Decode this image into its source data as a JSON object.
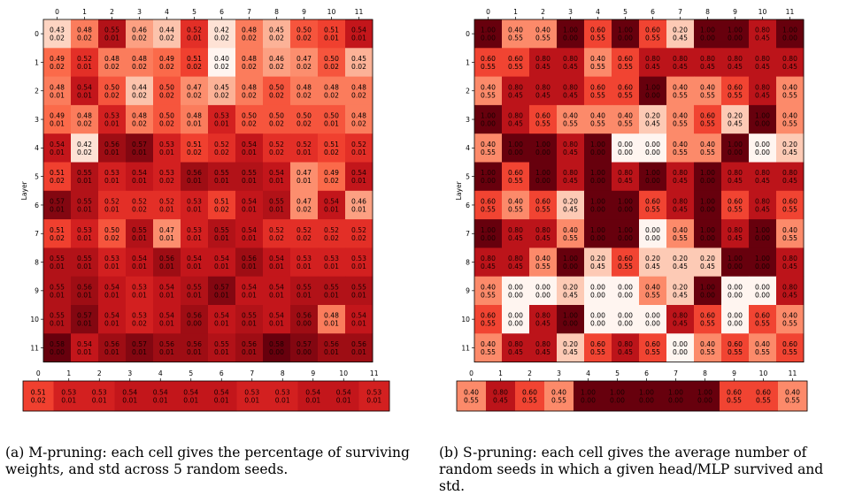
{
  "captions": {
    "a": "(a) M-pruning: each cell gives the percentage of surviving weights, and std across 5 random seeds.",
    "b": "(b) S-pruning: each cell gives the average number of random seeds in which a given head/MLP survived and std."
  },
  "chart_data": [
    {
      "type": "heatmap",
      "title": "",
      "xlabel": "",
      "ylabel": "Layer",
      "x_ticks": [
        "0",
        "1",
        "2",
        "3",
        "4",
        "5",
        "6",
        "7",
        "8",
        "9",
        "10",
        "11"
      ],
      "y_ticks": [
        "0",
        "1",
        "2",
        "3",
        "4",
        "5",
        "6",
        "7",
        "8",
        "9",
        "10",
        "11"
      ],
      "color_range": [
        0.4,
        0.58
      ],
      "colormap": "Reds",
      "grid": false,
      "values": [
        [
          "0.43",
          "0.48",
          "0.55",
          "0.46",
          "0.44",
          "0.52",
          "0.42",
          "0.48",
          "0.45",
          "0.50",
          "0.51",
          "0.54"
        ],
        [
          "0.49",
          "0.52",
          "0.48",
          "0.48",
          "0.49",
          "0.51",
          "0.40",
          "0.48",
          "0.46",
          "0.47",
          "0.50",
          "0.45"
        ],
        [
          "0.48",
          "0.54",
          "0.50",
          "0.44",
          "0.50",
          "0.47",
          "0.45",
          "0.48",
          "0.50",
          "0.48",
          "0.48",
          "0.48"
        ],
        [
          "0.49",
          "0.48",
          "0.53",
          "0.48",
          "0.50",
          "0.48",
          "0.53",
          "0.50",
          "0.50",
          "0.50",
          "0.50",
          "0.48"
        ],
        [
          "0.54",
          "0.42",
          "0.56",
          "0.57",
          "0.53",
          "0.51",
          "0.52",
          "0.54",
          "0.52",
          "0.52",
          "0.51",
          "0.52"
        ],
        [
          "0.51",
          "0.55",
          "0.53",
          "0.54",
          "0.53",
          "0.56",
          "0.55",
          "0.55",
          "0.54",
          "0.47",
          "0.49",
          "0.54"
        ],
        [
          "0.57",
          "0.55",
          "0.52",
          "0.52",
          "0.52",
          "0.53",
          "0.51",
          "0.54",
          "0.55",
          "0.47",
          "0.54",
          "0.46"
        ],
        [
          "0.51",
          "0.53",
          "0.50",
          "0.55",
          "0.47",
          "0.53",
          "0.55",
          "0.54",
          "0.52",
          "0.52",
          "0.52",
          "0.52"
        ],
        [
          "0.55",
          "0.55",
          "0.53",
          "0.54",
          "0.56",
          "0.54",
          "0.54",
          "0.56",
          "0.54",
          "0.53",
          "0.53",
          "0.53"
        ],
        [
          "0.55",
          "0.56",
          "0.54",
          "0.53",
          "0.54",
          "0.55",
          "0.57",
          "0.54",
          "0.54",
          "0.55",
          "0.55",
          "0.55"
        ],
        [
          "0.55",
          "0.57",
          "0.54",
          "0.53",
          "0.54",
          "0.56",
          "0.54",
          "0.55",
          "0.54",
          "0.56",
          "0.48",
          "0.54"
        ],
        [
          "0.58",
          "0.54",
          "0.56",
          "0.57",
          "0.56",
          "0.56",
          "0.55",
          "0.56",
          "0.58",
          "0.57",
          "0.56",
          "0.56"
        ]
      ],
      "stds": [
        [
          "0.02",
          "0.02",
          "0.01",
          "0.02",
          "0.02",
          "0.01",
          "0.02",
          "0.02",
          "0.02",
          "0.02",
          "0.01",
          "0.01"
        ],
        [
          "0.02",
          "0.01",
          "0.02",
          "0.02",
          "0.02",
          "0.02",
          "0.02",
          "0.02",
          "0.02",
          "0.02",
          "0.02",
          "0.02"
        ],
        [
          "0.01",
          "0.01",
          "0.02",
          "0.02",
          "0.02",
          "0.02",
          "0.02",
          "0.02",
          "0.02",
          "0.02",
          "0.02",
          "0.02"
        ],
        [
          "0.01",
          "0.02",
          "0.01",
          "0.02",
          "0.02",
          "0.01",
          "0.01",
          "0.02",
          "0.02",
          "0.02",
          "0.01",
          "0.02"
        ],
        [
          "0.01",
          "0.02",
          "0.01",
          "0.01",
          "0.01",
          "0.02",
          "0.02",
          "0.01",
          "0.02",
          "0.01",
          "0.02",
          "0.01"
        ],
        [
          "0.02",
          "0.01",
          "0.01",
          "0.01",
          "0.02",
          "0.01",
          "0.01",
          "0.01",
          "0.01",
          "0.01",
          "0.02",
          "0.01"
        ],
        [
          "0.01",
          "0.01",
          "0.01",
          "0.02",
          "0.01",
          "0.01",
          "0.02",
          "0.01",
          "0.01",
          "0.02",
          "0.01",
          "0.01"
        ],
        [
          "0.02",
          "0.01",
          "0.02",
          "0.01",
          "0.01",
          "0.01",
          "0.01",
          "0.01",
          "0.02",
          "0.02",
          "0.02",
          "0.02"
        ],
        [
          "0.01",
          "0.01",
          "0.01",
          "0.01",
          "0.01",
          "0.01",
          "0.01",
          "0.01",
          "0.01",
          "0.01",
          "0.01",
          "0.01"
        ],
        [
          "0.01",
          "0.01",
          "0.01",
          "0.01",
          "0.01",
          "0.01",
          "0.01",
          "0.01",
          "0.01",
          "0.01",
          "0.01",
          "0.01"
        ],
        [
          "0.01",
          "0.01",
          "0.01",
          "0.02",
          "0.01",
          "0.00",
          "0.01",
          "0.01",
          "0.01",
          "0.00",
          "0.01",
          "0.01"
        ],
        [
          "0.00",
          "0.01",
          "0.01",
          "0.01",
          "0.01",
          "0.01",
          "0.01",
          "0.01",
          "0.00",
          "0.00",
          "0.01",
          "0.01"
        ]
      ]
    },
    {
      "type": "heatmap",
      "title": "",
      "xlabel": "",
      "ylabel": "",
      "x_ticks": [
        "0",
        "1",
        "2",
        "3",
        "4",
        "5",
        "6",
        "7",
        "8",
        "9",
        "10",
        "11"
      ],
      "y_ticks": [],
      "color_range": [
        0.4,
        0.58
      ],
      "colormap": "Reds",
      "grid": false,
      "values": [
        [
          "0.51",
          "0.53",
          "0.53",
          "0.54",
          "0.54",
          "0.54",
          "0.54",
          "0.53",
          "0.53",
          "0.54",
          "0.54",
          "0.53"
        ]
      ],
      "stds": [
        [
          "0.02",
          "0.01",
          "0.01",
          "0.01",
          "0.01",
          "0.01",
          "0.01",
          "0.01",
          "0.01",
          "0.01",
          "0.01",
          "0.01"
        ]
      ]
    },
    {
      "type": "heatmap",
      "title": "",
      "xlabel": "",
      "ylabel": "Layer",
      "x_ticks": [
        "0",
        "1",
        "2",
        "3",
        "4",
        "5",
        "6",
        "7",
        "8",
        "9",
        "10",
        "11"
      ],
      "y_ticks": [
        "0",
        "1",
        "2",
        "3",
        "4",
        "5",
        "6",
        "7",
        "8",
        "9",
        "10",
        "11"
      ],
      "color_range": [
        0.0,
        1.0
      ],
      "colormap": "Reds",
      "grid": false,
      "values": [
        [
          "1.00",
          "0.40",
          "0.40",
          "1.00",
          "0.60",
          "1.00",
          "0.60",
          "0.20",
          "1.00",
          "1.00",
          "0.80",
          "1.00"
        ],
        [
          "0.60",
          "0.60",
          "0.80",
          "0.80",
          "0.40",
          "0.60",
          "0.80",
          "0.80",
          "0.80",
          "0.80",
          "0.80",
          "0.80"
        ],
        [
          "0.40",
          "0.80",
          "0.80",
          "0.80",
          "0.60",
          "0.60",
          "1.00",
          "0.40",
          "0.40",
          "0.60",
          "0.80",
          "0.40"
        ],
        [
          "1.00",
          "0.80",
          "0.60",
          "0.40",
          "0.40",
          "0.40",
          "0.20",
          "0.40",
          "0.60",
          "0.20",
          "1.00",
          "0.40"
        ],
        [
          "0.40",
          "1.00",
          "1.00",
          "0.80",
          "1.00",
          "0.00",
          "0.00",
          "0.40",
          "0.40",
          "1.00",
          "0.00",
          "0.20"
        ],
        [
          "1.00",
          "0.60",
          "1.00",
          "0.80",
          "1.00",
          "0.80",
          "1.00",
          "0.80",
          "1.00",
          "0.80",
          "0.80",
          "0.80"
        ],
        [
          "0.60",
          "0.40",
          "0.60",
          "0.20",
          "1.00",
          "1.00",
          "0.60",
          "0.80",
          "1.00",
          "0.60",
          "0.80",
          "0.60"
        ],
        [
          "1.00",
          "0.80",
          "0.80",
          "0.40",
          "1.00",
          "1.00",
          "0.00",
          "0.40",
          "1.00",
          "0.80",
          "1.00",
          "0.40"
        ],
        [
          "0.80",
          "0.80",
          "0.40",
          "1.00",
          "0.20",
          "0.60",
          "0.20",
          "0.20",
          "0.20",
          "1.00",
          "1.00",
          "0.80"
        ],
        [
          "0.40",
          "0.00",
          "0.00",
          "0.20",
          "0.00",
          "0.00",
          "0.40",
          "0.20",
          "1.00",
          "0.00",
          "0.00",
          "0.80"
        ],
        [
          "0.60",
          "0.00",
          "0.80",
          "1.00",
          "0.00",
          "0.00",
          "0.00",
          "0.80",
          "0.60",
          "0.00",
          "0.60",
          "0.40"
        ],
        [
          "0.40",
          "0.80",
          "0.80",
          "0.20",
          "0.60",
          "0.80",
          "0.60",
          "0.00",
          "0.40",
          "0.60",
          "0.40",
          "0.60"
        ]
      ],
      "stds": [
        [
          "0.00",
          "0.55",
          "0.55",
          "0.00",
          "0.55",
          "0.00",
          "0.55",
          "0.45",
          "0.00",
          "0.00",
          "0.45",
          "0.00"
        ],
        [
          "0.55",
          "0.55",
          "0.45",
          "0.45",
          "0.55",
          "0.55",
          "0.45",
          "0.45",
          "0.45",
          "0.45",
          "0.45",
          "0.45"
        ],
        [
          "0.55",
          "0.45",
          "0.45",
          "0.45",
          "0.55",
          "0.55",
          "0.00",
          "0.55",
          "0.55",
          "0.55",
          "0.45",
          "0.55"
        ],
        [
          "0.00",
          "0.45",
          "0.55",
          "0.55",
          "0.55",
          "0.55",
          "0.45",
          "0.55",
          "0.55",
          "0.45",
          "0.00",
          "0.55"
        ],
        [
          "0.55",
          "0.00",
          "0.00",
          "0.45",
          "0.00",
          "0.00",
          "0.00",
          "0.55",
          "0.55",
          "0.00",
          "0.00",
          "0.45"
        ],
        [
          "0.00",
          "0.55",
          "0.00",
          "0.45",
          "0.00",
          "0.45",
          "0.00",
          "0.45",
          "0.00",
          "0.45",
          "0.45",
          "0.45"
        ],
        [
          "0.55",
          "0.55",
          "0.55",
          "0.45",
          "0.00",
          "0.00",
          "0.55",
          "0.45",
          "0.00",
          "0.55",
          "0.45",
          "0.55"
        ],
        [
          "0.00",
          "0.45",
          "0.45",
          "0.55",
          "0.00",
          "0.00",
          "0.00",
          "0.55",
          "0.00",
          "0.45",
          "0.00",
          "0.55"
        ],
        [
          "0.45",
          "0.45",
          "0.55",
          "0.00",
          "0.45",
          "0.55",
          "0.45",
          "0.45",
          "0.45",
          "0.00",
          "0.00",
          "0.45"
        ],
        [
          "0.55",
          "0.00",
          "0.00",
          "0.45",
          "0.00",
          "0.00",
          "0.55",
          "0.45",
          "0.00",
          "0.00",
          "0.00",
          "0.45"
        ],
        [
          "0.55",
          "0.00",
          "0.45",
          "0.00",
          "0.00",
          "0.00",
          "0.00",
          "0.45",
          "0.55",
          "0.00",
          "0.55",
          "0.55"
        ],
        [
          "0.55",
          "0.45",
          "0.45",
          "0.45",
          "0.55",
          "0.45",
          "0.55",
          "0.00",
          "0.55",
          "0.55",
          "0.55",
          "0.55"
        ]
      ]
    },
    {
      "type": "heatmap",
      "title": "",
      "xlabel": "",
      "ylabel": "",
      "x_ticks": [
        "0",
        "1",
        "2",
        "3",
        "4",
        "5",
        "6",
        "7",
        "8",
        "9",
        "10",
        "11"
      ],
      "y_ticks": [],
      "color_range": [
        0.0,
        1.0
      ],
      "colormap": "Reds",
      "grid": false,
      "values": [
        [
          "0.40",
          "0.80",
          "0.60",
          "0.40",
          "1.00",
          "1.00",
          "1.00",
          "1.00",
          "1.00",
          "0.60",
          "0.60",
          "0.40"
        ]
      ],
      "stds": [
        [
          "0.55",
          "0.45",
          "0.55",
          "0.55",
          "0.00",
          "0.00",
          "0.00",
          "0.00",
          "0.00",
          "0.55",
          "0.55",
          "0.55"
        ]
      ]
    }
  ]
}
